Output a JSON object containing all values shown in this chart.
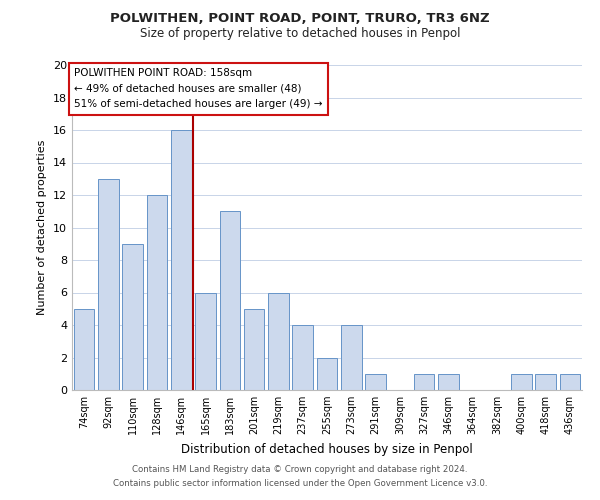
{
  "title": "POLWITHEN, POINT ROAD, POINT, TRURO, TR3 6NZ",
  "subtitle": "Size of property relative to detached houses in Penpol",
  "xlabel": "Distribution of detached houses by size in Penpol",
  "ylabel": "Number of detached properties",
  "footer_line1": "Contains HM Land Registry data © Crown copyright and database right 2024.",
  "footer_line2": "Contains public sector information licensed under the Open Government Licence v3.0.",
  "bar_labels": [
    "74sqm",
    "92sqm",
    "110sqm",
    "128sqm",
    "146sqm",
    "165sqm",
    "183sqm",
    "201sqm",
    "219sqm",
    "237sqm",
    "255sqm",
    "273sqm",
    "291sqm",
    "309sqm",
    "327sqm",
    "346sqm",
    "364sqm",
    "382sqm",
    "400sqm",
    "418sqm",
    "436sqm"
  ],
  "bar_values": [
    5,
    13,
    9,
    12,
    16,
    6,
    11,
    5,
    6,
    4,
    2,
    4,
    1,
    0,
    1,
    1,
    0,
    0,
    1,
    1,
    1
  ],
  "bar_color": "#ccd9ed",
  "bar_edge_color": "#6694c8",
  "ylim": [
    0,
    20
  ],
  "yticks": [
    0,
    2,
    4,
    6,
    8,
    10,
    12,
    14,
    16,
    18,
    20
  ],
  "vline_x": 4.5,
  "vline_color": "#aa0000",
  "annotation_title": "POLWITHEN POINT ROAD: 158sqm",
  "annotation_line1": "← 49% of detached houses are smaller (48)",
  "annotation_line2": "51% of semi-detached houses are larger (49) →",
  "background_color": "#ffffff",
  "grid_color": "#c8d4e8"
}
